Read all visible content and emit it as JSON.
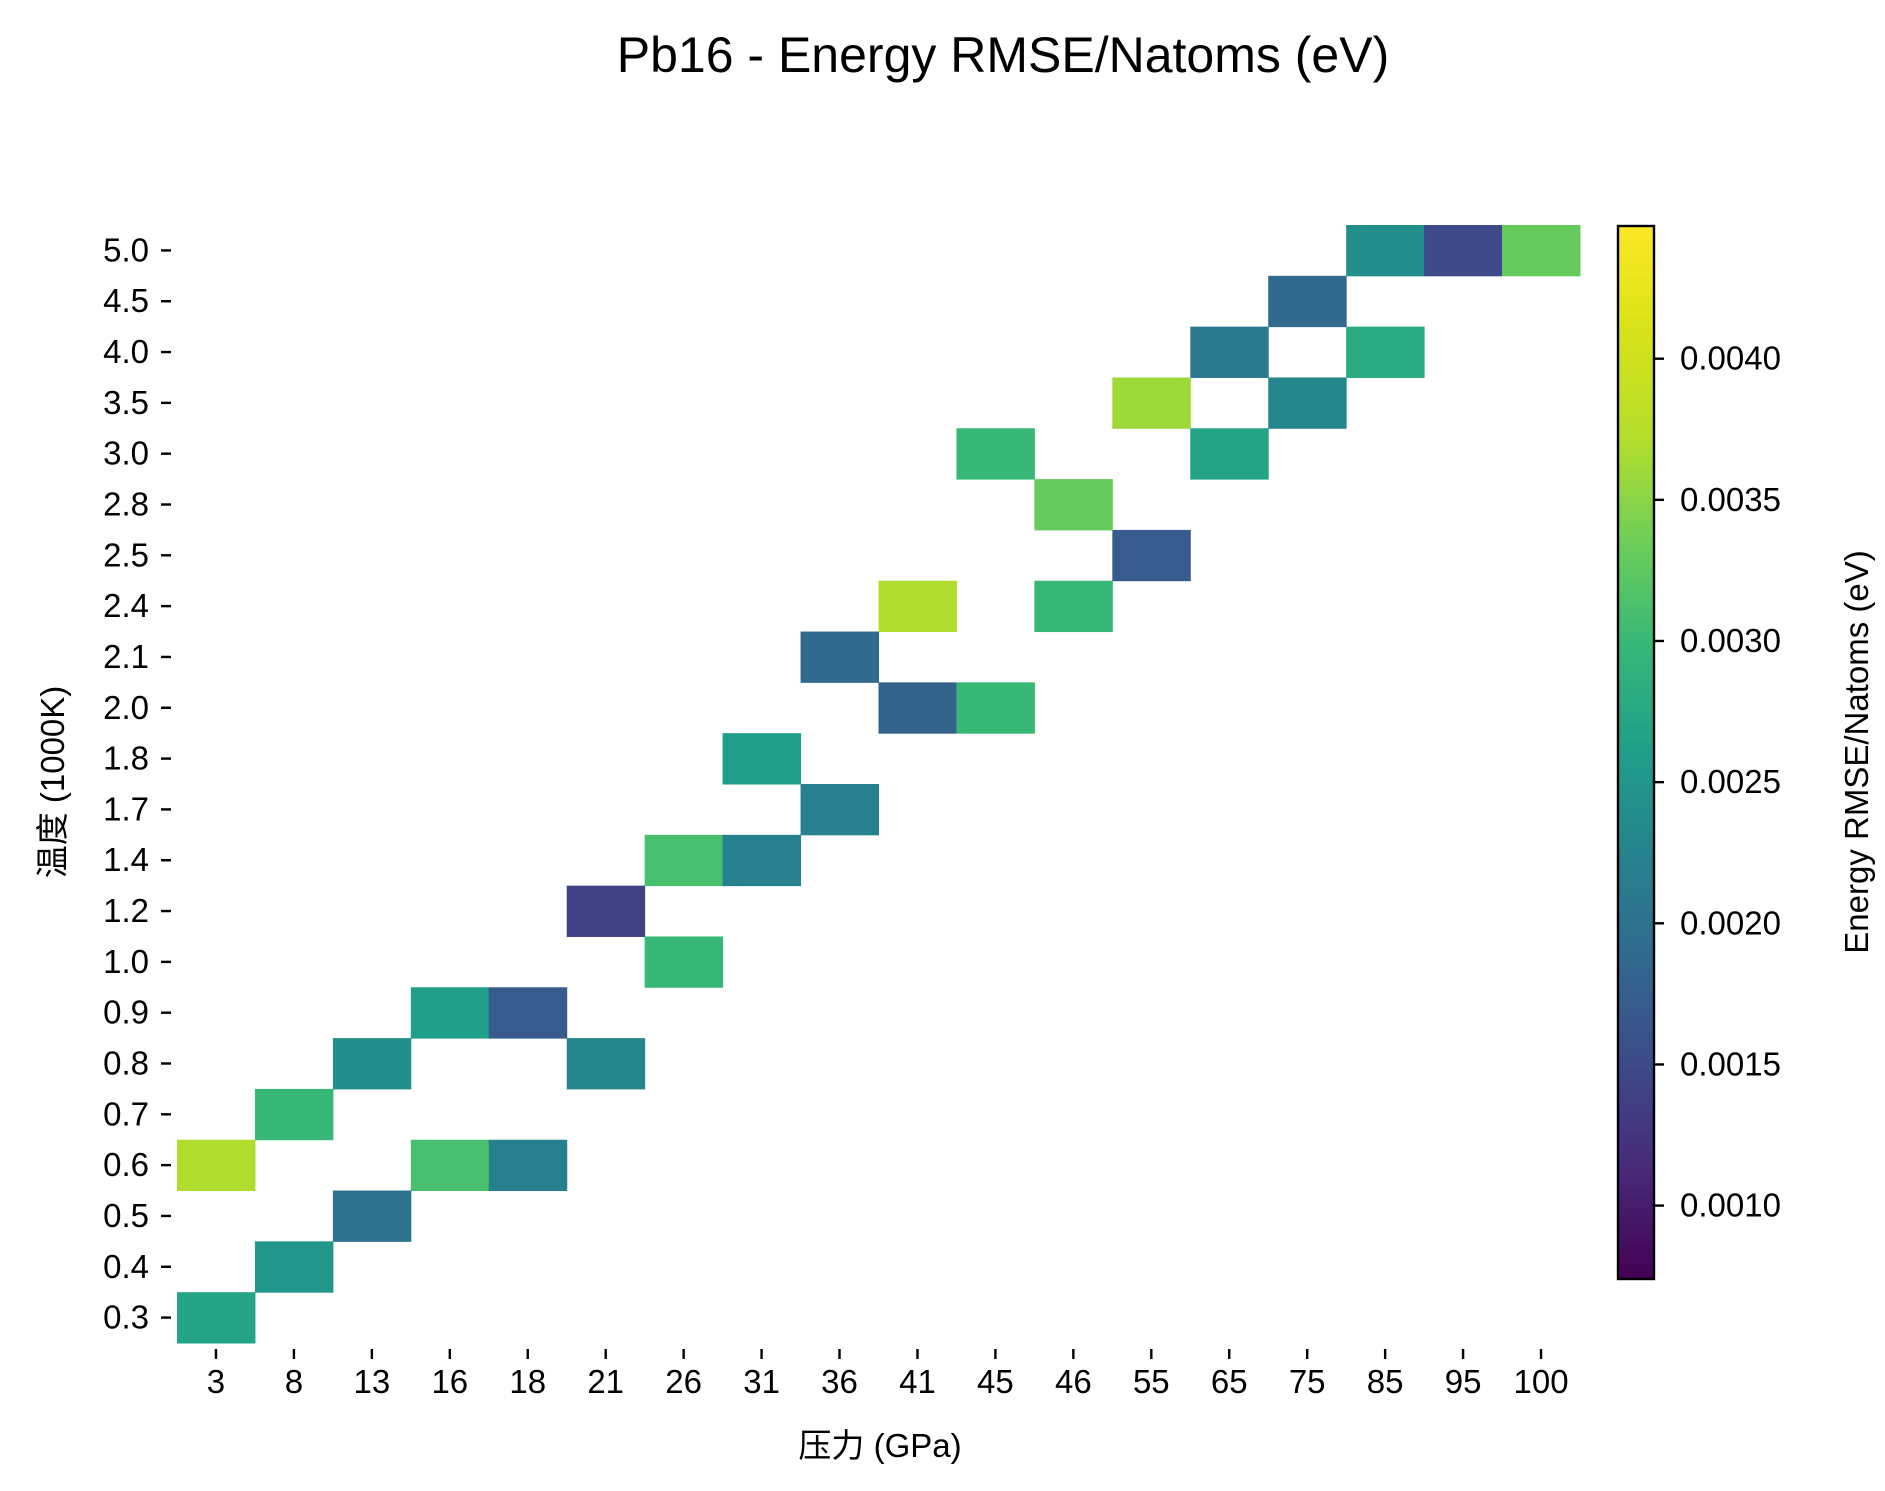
{
  "chart_data": {
    "type": "heatmap",
    "title": "Pb16 - Energy RMSE/Natoms (eV)",
    "xlabel": "压力 (GPa)",
    "ylabel": "温度 (1000K)",
    "x_categories": [
      "3",
      "8",
      "13",
      "16",
      "18",
      "21",
      "26",
      "31",
      "36",
      "41",
      "45",
      "46",
      "55",
      "65",
      "75",
      "85",
      "95",
      "100"
    ],
    "y_categories": [
      "0.3",
      "0.4",
      "0.5",
      "0.6",
      "0.7",
      "0.8",
      "0.9",
      "1.0",
      "1.2",
      "1.4",
      "1.7",
      "1.8",
      "2.0",
      "2.1",
      "2.4",
      "2.5",
      "2.8",
      "3.0",
      "3.5",
      "4.0",
      "4.5",
      "5.0"
    ],
    "cells": [
      {
        "x": "3",
        "y": "0.3",
        "value": 0.0027
      },
      {
        "x": "8",
        "y": "0.4",
        "value": 0.0025
      },
      {
        "x": "13",
        "y": "0.5",
        "value": 0.002
      },
      {
        "x": "3",
        "y": "0.6",
        "value": 0.0037
      },
      {
        "x": "16",
        "y": "0.6",
        "value": 0.0031
      },
      {
        "x": "18",
        "y": "0.6",
        "value": 0.0022
      },
      {
        "x": "8",
        "y": "0.7",
        "value": 0.003
      },
      {
        "x": "13",
        "y": "0.8",
        "value": 0.0024
      },
      {
        "x": "21",
        "y": "0.8",
        "value": 0.0023
      },
      {
        "x": "16",
        "y": "0.9",
        "value": 0.0026
      },
      {
        "x": "18",
        "y": "0.9",
        "value": 0.0017
      },
      {
        "x": "26",
        "y": "1.0",
        "value": 0.003
      },
      {
        "x": "21",
        "y": "1.2",
        "value": 0.0014
      },
      {
        "x": "26",
        "y": "1.4",
        "value": 0.0031
      },
      {
        "x": "31",
        "y": "1.4",
        "value": 0.0022
      },
      {
        "x": "36",
        "y": "1.7",
        "value": 0.0022
      },
      {
        "x": "31",
        "y": "1.8",
        "value": 0.0026
      },
      {
        "x": "41",
        "y": "2.0",
        "value": 0.0018
      },
      {
        "x": "45",
        "y": "2.0",
        "value": 0.003
      },
      {
        "x": "36",
        "y": "2.1",
        "value": 0.0019
      },
      {
        "x": "41",
        "y": "2.4",
        "value": 0.0037
      },
      {
        "x": "46",
        "y": "2.4",
        "value": 0.003
      },
      {
        "x": "55",
        "y": "2.5",
        "value": 0.0017
      },
      {
        "x": "46",
        "y": "2.8",
        "value": 0.0033
      },
      {
        "x": "45",
        "y": "3.0",
        "value": 0.003
      },
      {
        "x": "65",
        "y": "3.0",
        "value": 0.0027
      },
      {
        "x": "55",
        "y": "3.5",
        "value": 0.0036
      },
      {
        "x": "75",
        "y": "3.5",
        "value": 0.0023
      },
      {
        "x": "65",
        "y": "4.0",
        "value": 0.0021
      },
      {
        "x": "85",
        "y": "4.0",
        "value": 0.0028
      },
      {
        "x": "75",
        "y": "4.5",
        "value": 0.0019
      },
      {
        "x": "85",
        "y": "5.0",
        "value": 0.0024
      },
      {
        "x": "95",
        "y": "5.0",
        "value": 0.0015
      },
      {
        "x": "100",
        "y": "5.0",
        "value": 0.0033
      }
    ],
    "colormap": "viridis",
    "colorbar": {
      "label": "Energy RMSE/Natoms (eV)",
      "range": [
        0.00074,
        0.00447
      ],
      "ticks": [
        "0.0010",
        "0.0015",
        "0.0020",
        "0.0025",
        "0.0030",
        "0.0035",
        "0.0040"
      ]
    },
    "grid": false,
    "legend": "none"
  }
}
